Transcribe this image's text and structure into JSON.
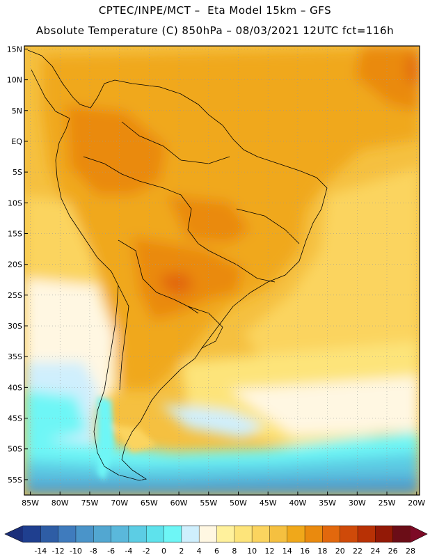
{
  "header": {
    "line1": "CPTEC/INPE/MCT –  Eta Model 15km – GFS",
    "line2": "Absolute Temperature (C) 850hPa – 08/03/2021 12UTC fct=116h"
  },
  "map": {
    "region": "South America",
    "latitude_labels": [
      "15N",
      "10N",
      "5N",
      "EQ",
      "5S",
      "10S",
      "15S",
      "20S",
      "25S",
      "30S",
      "35S",
      "40S",
      "45S",
      "50S",
      "55S"
    ],
    "longitude_labels": [
      "85W",
      "80W",
      "75W",
      "70W",
      "65W",
      "60W",
      "55W",
      "50W",
      "45W",
      "40W",
      "35W",
      "30W",
      "25W",
      "20W"
    ],
    "lat_range": [
      15.5,
      -57.5
    ],
    "lon_range": [
      -86,
      -19.5
    ],
    "grid": "dotted"
  },
  "colorbar": {
    "ticks": [
      "-14",
      "-12",
      "-10",
      "-8",
      "-6",
      "-4",
      "-2",
      "0",
      "2",
      "4",
      "6",
      "8",
      "10",
      "12",
      "14",
      "16",
      "18",
      "20",
      "22",
      "24",
      "26",
      "28"
    ],
    "colors": [
      "#1f3f8f",
      "#2e5da5",
      "#3f7bbd",
      "#4a94c9",
      "#52a7d1",
      "#5ab8db",
      "#5ccde4",
      "#5ee2ec",
      "#6ef6f6",
      "#cfeffd",
      "#fff7e2",
      "#fff19c",
      "#fde47a",
      "#fbd45f",
      "#f5c040",
      "#f0a81a",
      "#ea8a0e",
      "#e2680d",
      "#cf4a09",
      "#b83105",
      "#931906",
      "#6b0d17"
    ]
  }
}
